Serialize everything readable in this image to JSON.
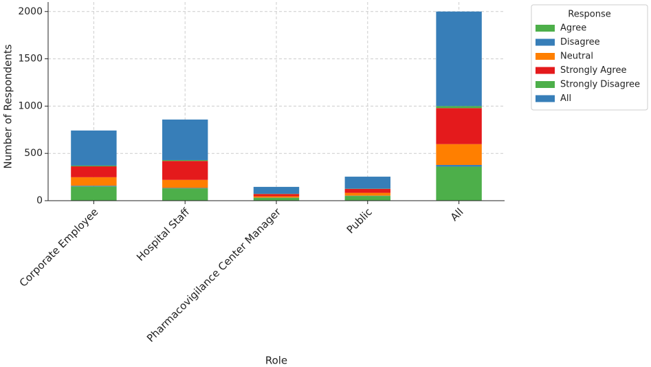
{
  "chart_data": {
    "type": "stacked_bar",
    "x_label": "Role",
    "y_label": "Number of Respondents",
    "categories": [
      "Corporate Employee",
      "Hospital Staff",
      "Pharmacovigilance Center Manager",
      "Public",
      "All"
    ],
    "legend_title": "Response",
    "legend": "outside upper right",
    "grid": true,
    "series": [
      {
        "name": "Agree",
        "color": "#4daf4a",
        "values": [
          150,
          130,
          30,
          50,
          360
        ]
      },
      {
        "name": "Disagree",
        "color": "#377eb8",
        "values": [
          8,
          5,
          2,
          3,
          18
        ]
      },
      {
        "name": "Neutral",
        "color": "#ff7f00",
        "values": [
          90,
          85,
          15,
          30,
          220
        ]
      },
      {
        "name": "Strongly Agree",
        "color": "#e41a1c",
        "values": [
          115,
          200,
          24,
          42,
          381
        ]
      },
      {
        "name": "Strongly Disagree",
        "color": "#4daf4a",
        "values": [
          8,
          9,
          2,
          2,
          21
        ]
      },
      {
        "name": "All",
        "color": "#377eb8",
        "values": [
          371,
          429,
          73,
          127,
          1000
        ]
      }
    ],
    "ylim": [
      0,
      2100
    ],
    "yticks": [
      0,
      500,
      1000,
      1500,
      2000
    ]
  }
}
